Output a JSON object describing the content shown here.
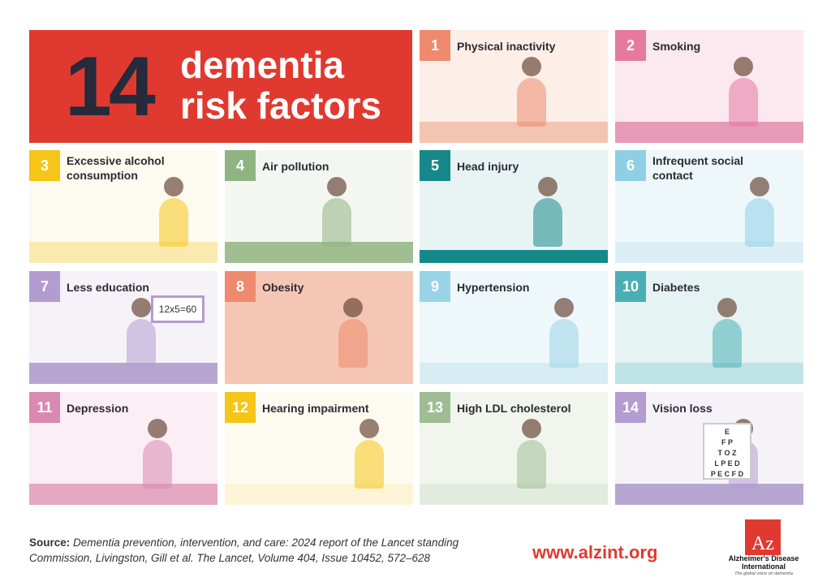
{
  "title": {
    "number": "14",
    "line1": "dementia",
    "line2": "risk factors"
  },
  "factors": [
    {
      "num": "1",
      "label": "Physical inactivity",
      "badge_color": "#ef8a6e",
      "bg": "#fdeee8"
    },
    {
      "num": "2",
      "label": "Smoking",
      "badge_color": "#e6799e",
      "bg": "#fbe9ef"
    },
    {
      "num": "3",
      "label": "Excessive alcohol consumption",
      "badge_color": "#f5c518",
      "bg": "#fdfaf0"
    },
    {
      "num": "4",
      "label": "Air pollution",
      "badge_color": "#8fb381",
      "bg": "#f4f6f1"
    },
    {
      "num": "5",
      "label": "Head injury",
      "badge_color": "#16888a",
      "bg": "#e8f3f4"
    },
    {
      "num": "6",
      "label": "Infrequent social contact",
      "badge_color": "#8ecfe6",
      "bg": "#eef7fa"
    },
    {
      "num": "7",
      "label": "Less education",
      "badge_color": "#b39ccf",
      "bg": "#f5f2f8"
    },
    {
      "num": "8",
      "label": "Obesity",
      "badge_color": "#ef8a6e",
      "bg": "#f6c6b4"
    },
    {
      "num": "9",
      "label": "Hypertension",
      "badge_color": "#9ad3e6",
      "bg": "#eef7fa"
    },
    {
      "num": "10",
      "label": "Diabetes",
      "badge_color": "#4aaeb5",
      "bg": "#e6f3f3"
    },
    {
      "num": "11",
      "label": "Depression",
      "badge_color": "#d88ab0",
      "bg": "#fbeef4"
    },
    {
      "num": "12",
      "label": "Hearing impairment",
      "badge_color": "#f5c518",
      "bg": "#fdfaf0"
    },
    {
      "num": "13",
      "label": "High LDL cholesterol",
      "badge_color": "#9ebd94",
      "bg": "#f1f5ee"
    },
    {
      "num": "14",
      "label": "Vision loss",
      "badge_color": "#b39ccf",
      "bg": "#f5f2f8"
    }
  ],
  "illustration_text": {
    "blackboard": "12x5=60",
    "eye_chart": [
      "E",
      "F P",
      "T O Z",
      "L P E D",
      "P E C F D"
    ]
  },
  "footer": {
    "source_label": "Source:",
    "source_text": "Dementia prevention, intervention, and care: 2024 report of the Lancet standing Commission, Livingston, Gill et al. The Lancet, Volume 404, Issue 10452, 572–628",
    "url": "www.alzint.org",
    "logo_letters": "Az",
    "logo_name": "Alzheimer's Disease International",
    "logo_tagline": "The global voice on dementia"
  },
  "colors": {
    "brand_red": "#e03a30",
    "title_dark": "#262a3b"
  }
}
